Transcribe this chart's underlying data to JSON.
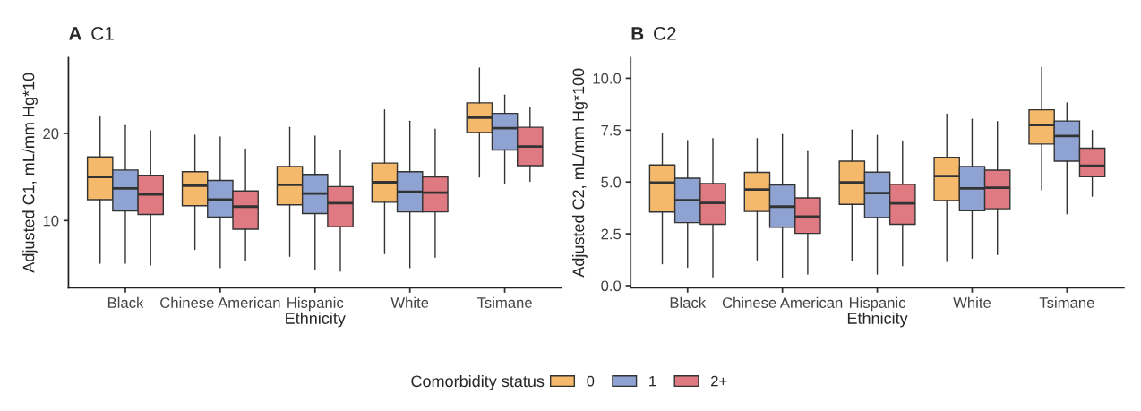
{
  "chart_data": [
    {
      "type": "box",
      "title": "A  C1",
      "xlabel": "Ethnicity",
      "ylabel": "Adjusted C1, mL/mm Hg*10",
      "categories": [
        "Black",
        "Chinese American",
        "Hispanic",
        "White",
        "Tsimane"
      ],
      "ylim": [
        2.3,
        28.7
      ],
      "yticks": [
        10,
        20
      ],
      "grid": false,
      "legend": "bottom",
      "legend_title": "Comorbidity status",
      "series": [
        {
          "name": "0",
          "color": "#f5b96b",
          "boxes": [
            {
              "low": 5.1,
              "q1": 12.4,
              "median": 15.0,
              "q3": 17.3,
              "high": 22.0
            },
            {
              "low": 6.7,
              "q1": 11.7,
              "median": 14.0,
              "q3": 15.6,
              "high": 19.8
            },
            {
              "low": 5.9,
              "q1": 11.8,
              "median": 14.1,
              "q3": 16.2,
              "high": 20.7
            },
            {
              "low": 6.2,
              "q1": 12.1,
              "median": 14.4,
              "q3": 16.6,
              "high": 22.7
            },
            {
              "low": 15.0,
              "q1": 20.1,
              "median": 21.8,
              "q3": 23.5,
              "high": 27.5
            }
          ]
        },
        {
          "name": "1",
          "color": "#8ea3d1",
          "boxes": [
            {
              "low": 5.1,
              "q1": 11.1,
              "median": 13.7,
              "q3": 15.8,
              "high": 20.9
            },
            {
              "low": 4.6,
              "q1": 10.4,
              "median": 12.4,
              "q3": 14.6,
              "high": 19.6
            },
            {
              "low": 4.4,
              "q1": 10.8,
              "median": 13.1,
              "q3": 15.3,
              "high": 19.7
            },
            {
              "low": 4.6,
              "q1": 11.0,
              "median": 13.3,
              "q3": 15.6,
              "high": 21.4
            },
            {
              "low": 14.3,
              "q1": 18.1,
              "median": 20.6,
              "q3": 22.3,
              "high": 24.4
            }
          ]
        },
        {
          "name": "2+",
          "color": "#e07a82",
          "boxes": [
            {
              "low": 4.9,
              "q1": 10.7,
              "median": 13.0,
              "q3": 15.2,
              "high": 20.3
            },
            {
              "low": 5.4,
              "q1": 9.0,
              "median": 11.6,
              "q3": 13.4,
              "high": 18.2
            },
            {
              "low": 4.2,
              "q1": 9.3,
              "median": 12.0,
              "q3": 13.9,
              "high": 18.0
            },
            {
              "low": 5.8,
              "q1": 11.0,
              "median": 13.2,
              "q3": 15.0,
              "high": 20.5
            },
            {
              "low": 14.5,
              "q1": 16.3,
              "median": 18.5,
              "q3": 20.7,
              "high": 23.0
            }
          ]
        }
      ]
    },
    {
      "type": "box",
      "title": "B  C2",
      "xlabel": "Ethnicity",
      "ylabel": "Adjusted C2, mL/mm Hg*100",
      "categories": [
        "Black",
        "Chinese American",
        "Hispanic",
        "White",
        "Tsimane"
      ],
      "ylim": [
        -0.1,
        11.0
      ],
      "yticks": [
        {
          "value": 0,
          "label": "0.0"
        },
        {
          "value": 2.5,
          "label": "2.5"
        },
        {
          "value": 5,
          "label": "5.0"
        },
        {
          "value": 7.5,
          "label": "7.5"
        },
        {
          "value": 10,
          "label": "10.0"
        }
      ],
      "grid": false,
      "series": [
        {
          "color": "#f5b96b",
          "boxes": [
            {
              "low": 1.05,
              "q1": 3.55,
              "median": 4.97,
              "q3": 5.82,
              "high": 7.34
            },
            {
              "low": 1.24,
              "q1": 3.58,
              "median": 4.64,
              "q3": 5.46,
              "high": 7.09
            },
            {
              "low": 1.21,
              "q1": 3.92,
              "median": 4.98,
              "q3": 6.0,
              "high": 7.5
            },
            {
              "low": 1.16,
              "q1": 4.1,
              "median": 5.28,
              "q3": 6.19,
              "high": 8.27
            },
            {
              "low": 4.62,
              "q1": 6.83,
              "median": 7.75,
              "q3": 8.48,
              "high": 10.52
            }
          ]
        },
        {
          "color": "#8ea3d1",
          "boxes": [
            {
              "low": 0.88,
              "q1": 3.04,
              "median": 4.12,
              "q3": 5.18,
              "high": 7.0
            },
            {
              "low": 0.39,
              "q1": 2.81,
              "median": 3.81,
              "q3": 4.85,
              "high": 7.29
            },
            {
              "low": 0.56,
              "q1": 3.28,
              "median": 4.46,
              "q3": 5.47,
              "high": 7.25
            },
            {
              "low": 1.32,
              "q1": 3.61,
              "median": 4.69,
              "q3": 5.74,
              "high": 8.02
            },
            {
              "low": 3.46,
              "q1": 6.0,
              "median": 7.22,
              "q3": 7.94,
              "high": 8.81
            }
          ]
        },
        {
          "color": "#e07a82",
          "boxes": [
            {
              "low": 0.42,
              "q1": 2.96,
              "median": 3.99,
              "q3": 4.92,
              "high": 7.09
            },
            {
              "low": 0.56,
              "q1": 2.52,
              "median": 3.33,
              "q3": 4.23,
              "high": 6.47
            },
            {
              "low": 0.96,
              "q1": 2.96,
              "median": 3.97,
              "q3": 4.89,
              "high": 6.98
            },
            {
              "low": 1.5,
              "q1": 3.71,
              "median": 4.72,
              "q3": 5.57,
              "high": 7.91
            },
            {
              "low": 4.31,
              "q1": 5.25,
              "median": 5.78,
              "q3": 6.63,
              "high": 7.48
            }
          ]
        }
      ]
    }
  ]
}
